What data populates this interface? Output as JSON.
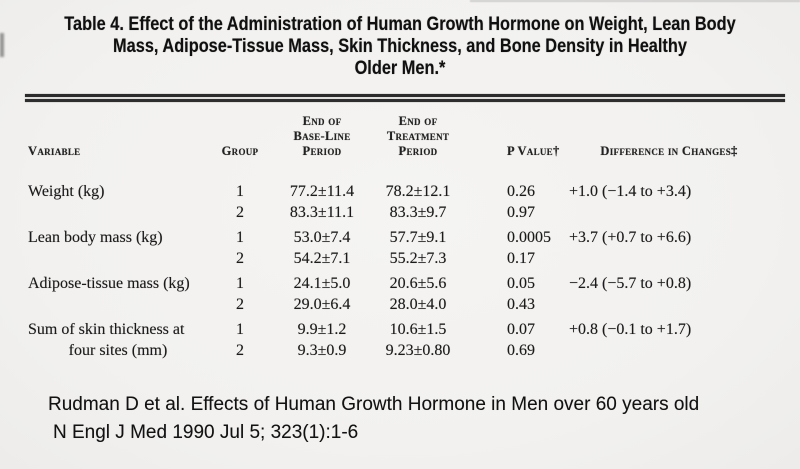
{
  "colors": {
    "background": "#f2f1ef",
    "text": "#1b1b1b",
    "rule": "#2b2b2b"
  },
  "title_lines": [
    "Table 4. Effect of the Administration of Human Growth Hormone on Weight, Lean Body",
    "Mass, Adipose-Tissue Mass, Skin Thickness, and Bone Density in Healthy",
    "Older Men.*"
  ],
  "table": {
    "header": {
      "variable": "Variable",
      "group": "Group",
      "baseline": [
        "End of",
        "Base-Line",
        "Period"
      ],
      "treatment": [
        "End of",
        "Treatment",
        "Period"
      ],
      "p_value": "P Value†",
      "difference": "Difference in Changes‡"
    },
    "rows": [
      {
        "variable_lines": [
          "Weight (kg)"
        ],
        "entries": [
          {
            "group": "1",
            "baseline": "77.2±11.4",
            "treatment": "78.2±12.1",
            "p_value": "0.26",
            "difference": "+1.0",
            "ci": "(−1.4 to +3.4)"
          },
          {
            "group": "2",
            "baseline": "83.3±11.1",
            "treatment": "83.3±9.7",
            "p_value": "0.97",
            "difference": "",
            "ci": ""
          }
        ]
      },
      {
        "variable_lines": [
          "Lean body mass (kg)"
        ],
        "entries": [
          {
            "group": "1",
            "baseline": "53.0±7.4",
            "treatment": "57.7±9.1",
            "p_value": "0.0005",
            "difference": "+3.7",
            "ci": "(+0.7 to +6.6)"
          },
          {
            "group": "2",
            "baseline": "54.2±7.1",
            "treatment": "55.2±7.3",
            "p_value": "0.17",
            "difference": "",
            "ci": ""
          }
        ]
      },
      {
        "variable_lines": [
          "Adipose-tissue mass (kg)"
        ],
        "entries": [
          {
            "group": "1",
            "baseline": "24.1±5.0",
            "treatment": "20.6±5.6",
            "p_value": "0.05",
            "difference": "−2.4",
            "ci": "(−5.7 to +0.8)"
          },
          {
            "group": "2",
            "baseline": "29.0±6.4",
            "treatment": "28.0±4.0",
            "p_value": "0.43",
            "difference": "",
            "ci": ""
          }
        ]
      },
      {
        "variable_lines": [
          "Sum of skin thickness at",
          "four sites (mm)"
        ],
        "entries": [
          {
            "group": "1",
            "baseline": "9.9±1.2",
            "treatment": "10.6±1.5",
            "p_value": "0.07",
            "difference": "+0.8",
            "ci": "(−0.1 to +1.7)"
          },
          {
            "group": "2",
            "baseline": "9.3±0.9",
            "treatment": "9.23±0.80",
            "p_value": "0.69",
            "difference": "",
            "ci": ""
          }
        ]
      }
    ]
  },
  "citation": {
    "line1": "Rudman D et al. Effects of Human Growth Hormone in Men over 60 years old",
    "line2": "N Engl J Med 1990 Jul 5; 323(1):1-6"
  }
}
